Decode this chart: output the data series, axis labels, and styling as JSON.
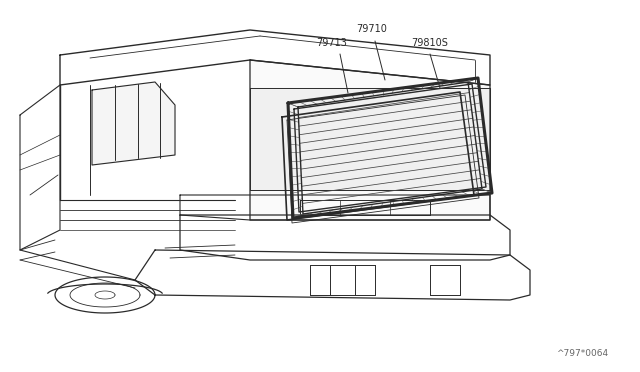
{
  "background_color": "#ffffff",
  "line_color": "#2a2a2a",
  "part_labels": [
    "79710",
    "79713",
    "79810S"
  ],
  "footnote": "^797*0064",
  "fig_width": 6.4,
  "fig_height": 3.72,
  "dpi": 100
}
